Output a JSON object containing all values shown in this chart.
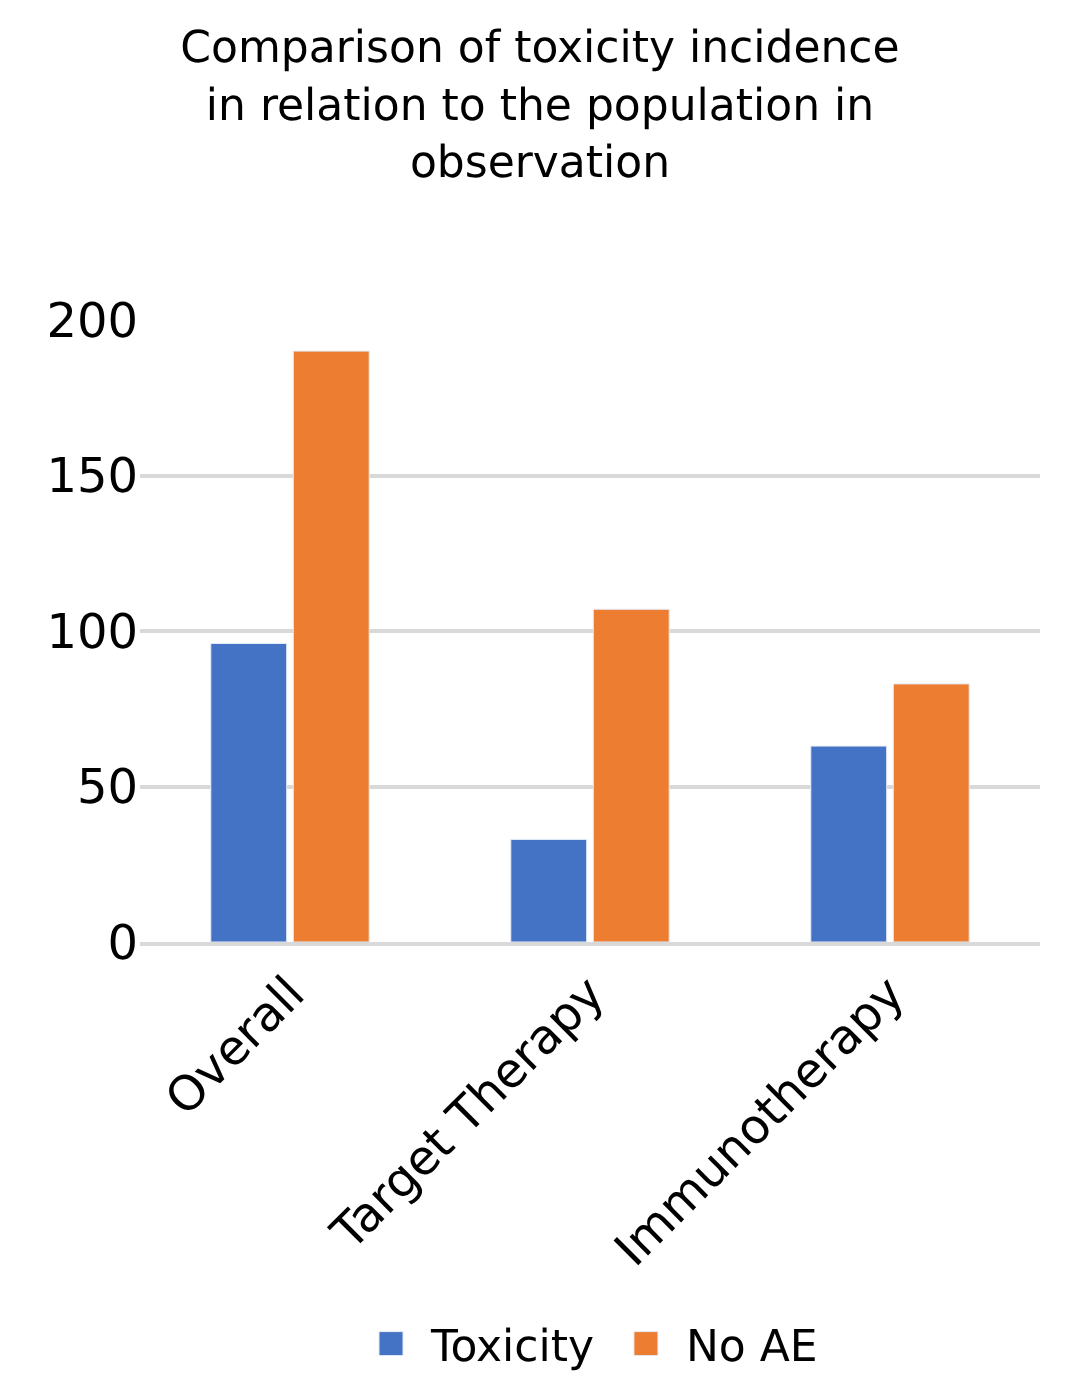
{
  "chart_data": {
    "type": "bar",
    "title": "Comparison of toxicity incidence in relation to the population in observation",
    "categories": [
      "Overall",
      "Target Therapy",
      "Immunotherapy"
    ],
    "series": [
      {
        "name": "Toxicity",
        "color": "#4472c4",
        "values": [
          96,
          33,
          63
        ]
      },
      {
        "name": "No AE",
        "color": "#ed7d31",
        "values": [
          190,
          107,
          83
        ]
      }
    ],
    "ylim": [
      0,
      200
    ],
    "yticks": [
      0,
      50,
      100,
      150,
      200
    ],
    "grid": "y",
    "legend": "bottom"
  }
}
